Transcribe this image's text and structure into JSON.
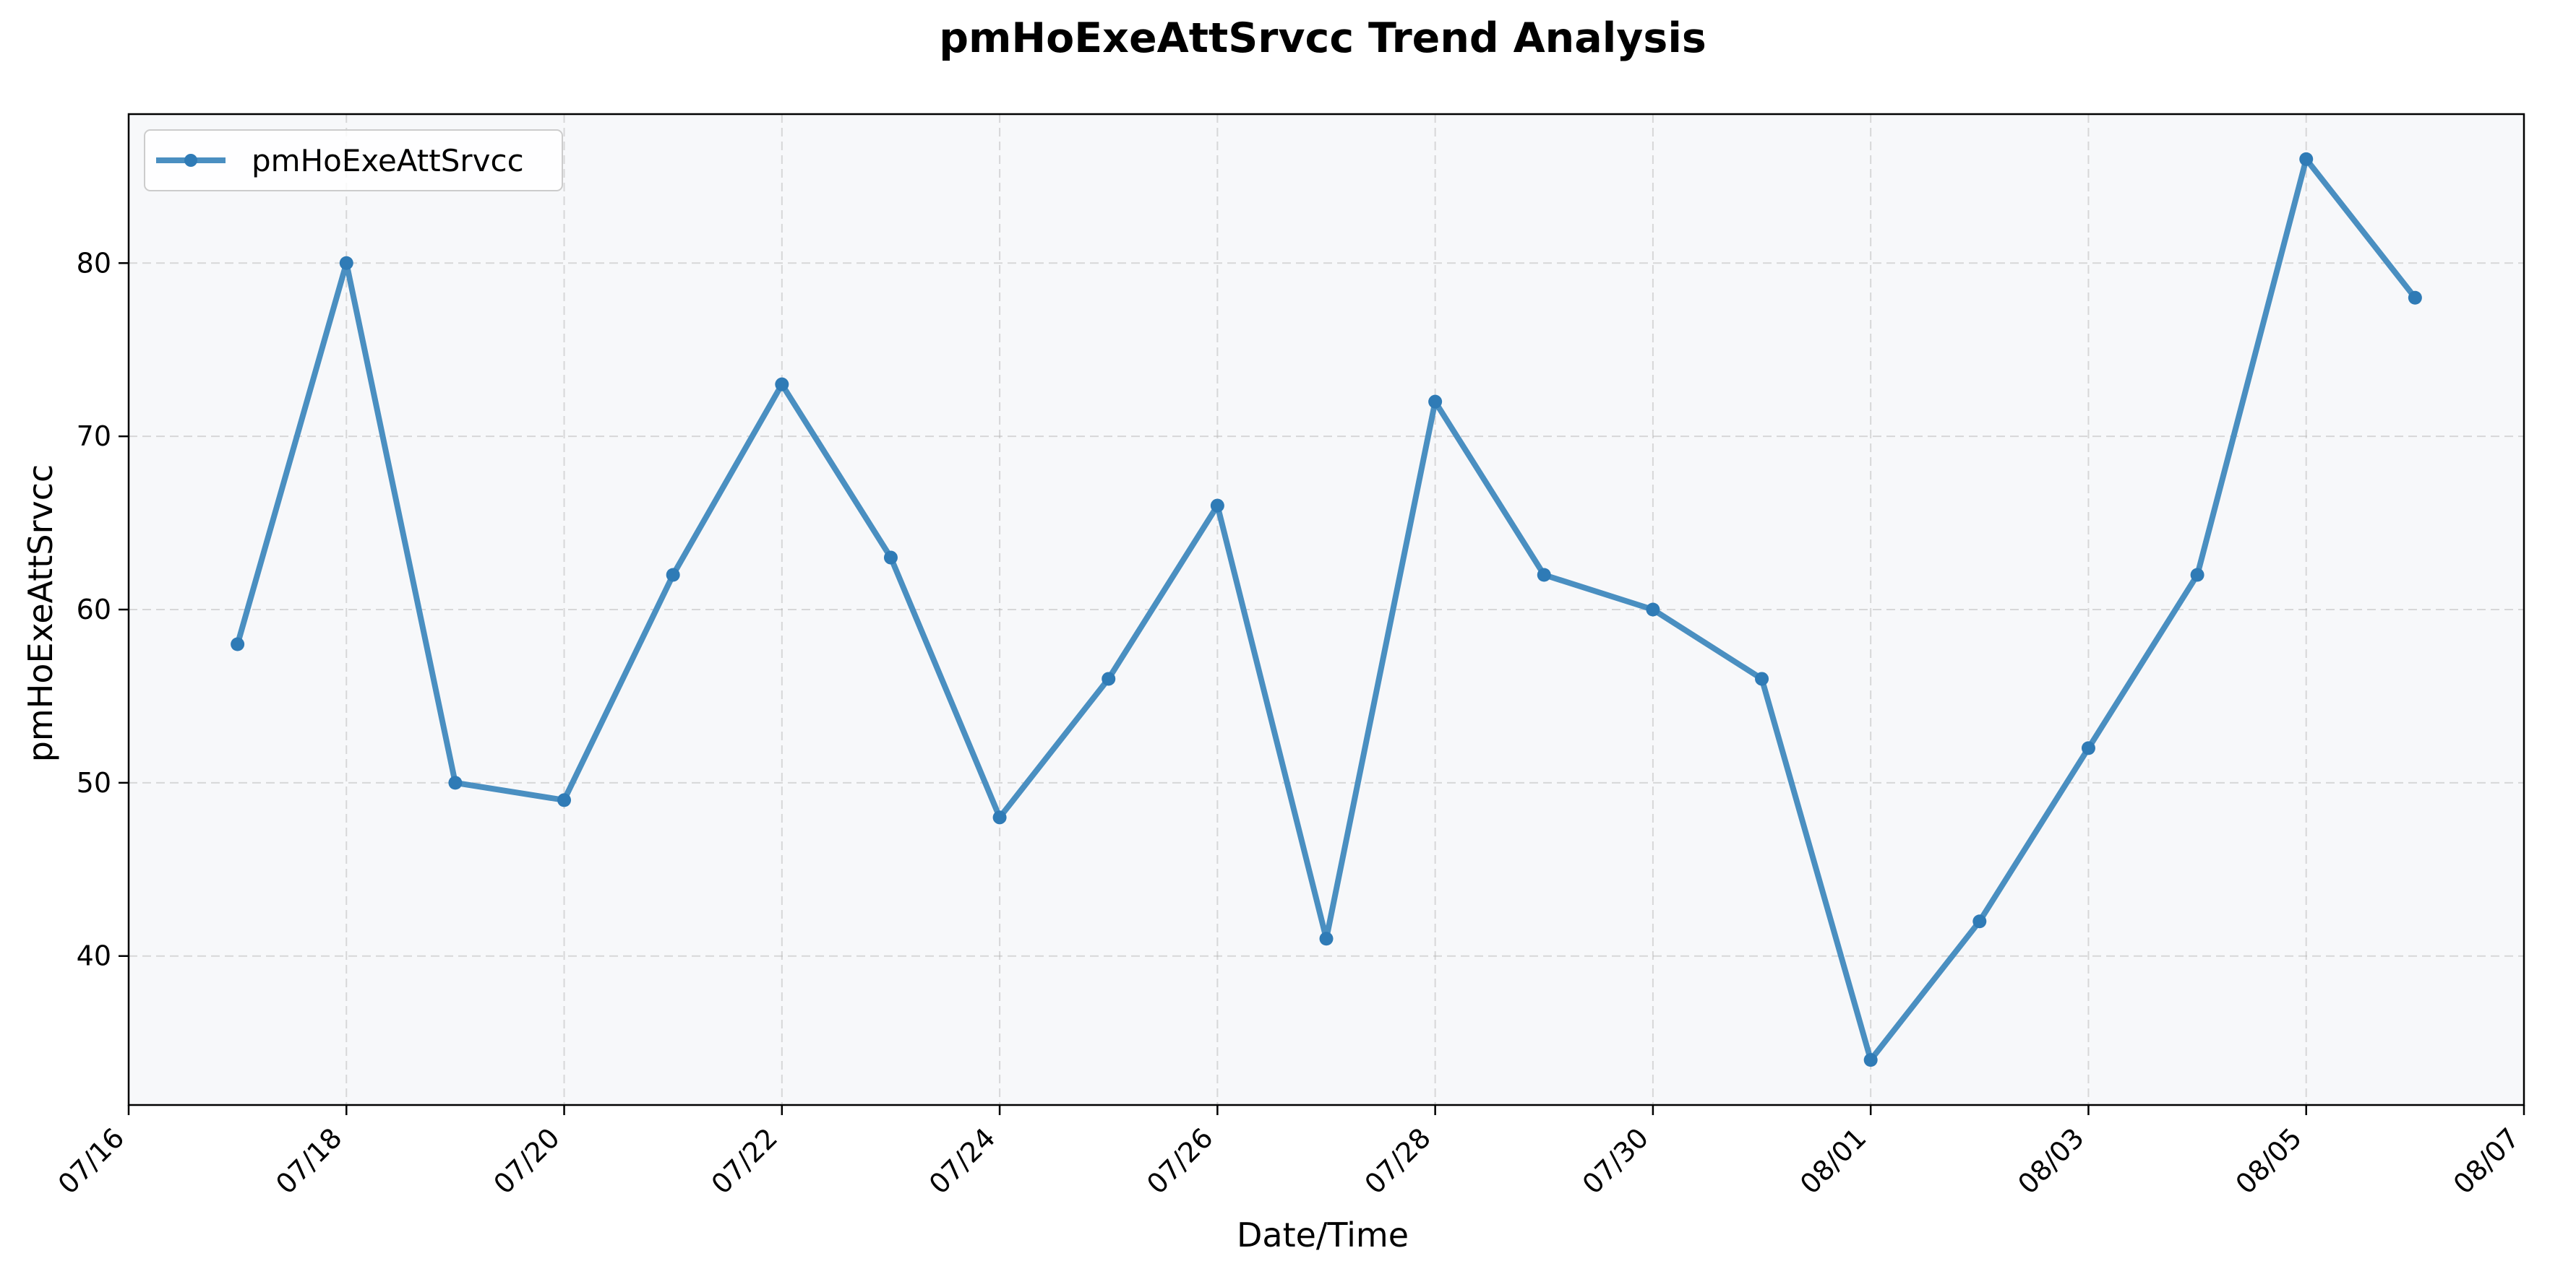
{
  "chart_data": {
    "type": "line",
    "title": "pmHoExeAttSrvcc Trend Analysis",
    "xlabel": "Date/Time",
    "ylabel": "pmHoExeAttSrvcc",
    "x": [
      "07/17",
      "07/18",
      "07/19",
      "07/20",
      "07/21",
      "07/22",
      "07/23",
      "07/24",
      "07/25",
      "07/26",
      "07/27",
      "07/28",
      "07/29",
      "07/30",
      "07/31",
      "08/01",
      "08/02",
      "08/03",
      "08/04",
      "08/05",
      "08/06"
    ],
    "series": [
      {
        "name": "pmHoExeAttSrvcc",
        "values": [
          58,
          80,
          50,
          49,
          62,
          73,
          63,
          48,
          56,
          66,
          41,
          72,
          62,
          60,
          56,
          34,
          42,
          52,
          62,
          86,
          78
        ],
        "color": "#4a8fc1"
      }
    ],
    "x_ticks": [
      "07/16",
      "07/18",
      "07/20",
      "07/22",
      "07/24",
      "07/26",
      "07/28",
      "07/30",
      "08/01",
      "08/03",
      "08/05",
      "08/07"
    ],
    "y_ticks": [
      40,
      50,
      60,
      70,
      80
    ],
    "xlim": [
      "07/16",
      "08/07"
    ],
    "ylim": [
      31.4,
      88.6
    ],
    "grid": true,
    "legend_position": "top-left",
    "plot_background": "#f7f8fa"
  }
}
